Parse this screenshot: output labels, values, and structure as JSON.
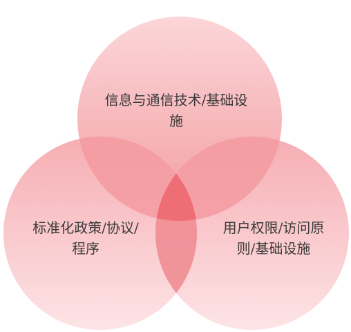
{
  "diagram": {
    "type": "venn-3",
    "circles": [
      {
        "id": "top",
        "label": "信息与通信技术/基础设施"
      },
      {
        "id": "left",
        "label": "标准化政策/协议/程序"
      },
      {
        "id": "right",
        "label": "用户权限/访问原则/基础设施"
      }
    ],
    "colors": {
      "circle_light": "#fbd0d2",
      "circle_dark": "#f07c82",
      "overlap_pair": "#f39aa0",
      "overlap_center": "#ee6a72",
      "text": "#3a3a3a"
    }
  }
}
